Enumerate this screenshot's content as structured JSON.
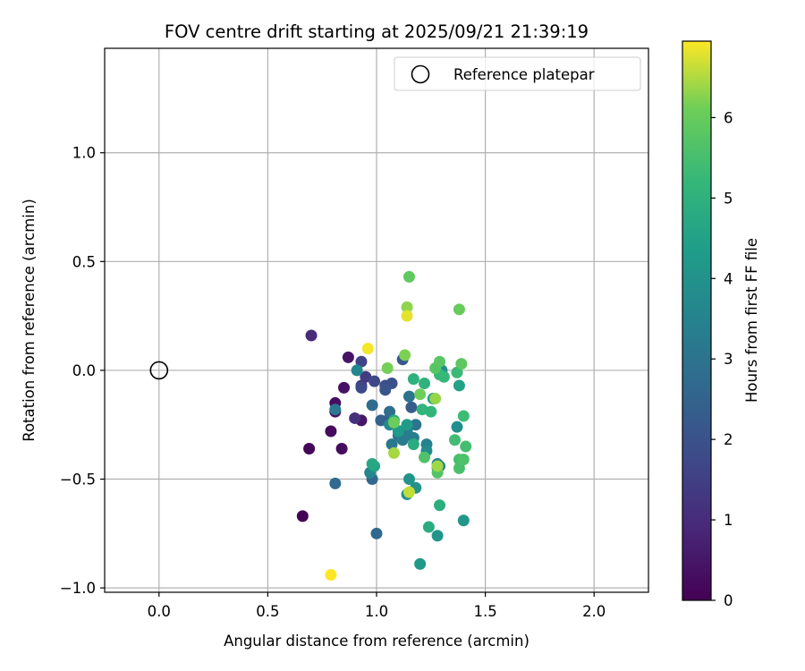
{
  "chart_data": {
    "type": "scatter",
    "title": "FOV centre drift starting at 2025/09/21 21:39:19",
    "xlabel": "Angular distance from reference (arcmin)",
    "ylabel": "Rotation from reference (arcmin)",
    "xlim": [
      -0.25,
      2.25
    ],
    "ylim": [
      -1.02,
      1.48
    ],
    "xticks": [
      0.0,
      0.5,
      1.0,
      1.5,
      2.0
    ],
    "xtick_labels": [
      "0.0",
      "0.5",
      "1.0",
      "1.5",
      "2.0"
    ],
    "yticks": [
      -1.0,
      -0.5,
      0.0,
      0.5,
      1.0
    ],
    "ytick_labels": [
      "−1.0",
      "−0.5",
      "0.0",
      "0.5",
      "1.0"
    ],
    "grid": true,
    "legend": {
      "position": "top-right",
      "label": "Reference platepar"
    },
    "reference_point": {
      "x": 0.0,
      "y": 0.0
    },
    "colorbar": {
      "label": "Hours from first FF file",
      "colormap": "viridis",
      "range": [
        0,
        6.95
      ],
      "ticks": [
        0,
        1,
        2,
        3,
        4,
        5,
        6
      ],
      "tick_labels": [
        "0",
        "1",
        "2",
        "3",
        "4",
        "5",
        "6"
      ]
    },
    "points": [
      {
        "x": 0.66,
        "y": -0.67,
        "t": 0.0
      },
      {
        "x": 0.69,
        "y": -0.36,
        "t": 0.1
      },
      {
        "x": 0.79,
        "y": -0.28,
        "t": 0.2
      },
      {
        "x": 0.84,
        "y": -0.36,
        "t": 0.25
      },
      {
        "x": 0.81,
        "y": -0.15,
        "t": 0.3
      },
      {
        "x": 0.81,
        "y": -0.19,
        "t": 0.35
      },
      {
        "x": 0.85,
        "y": -0.08,
        "t": 0.4
      },
      {
        "x": 0.87,
        "y": 0.06,
        "t": 0.45
      },
      {
        "x": 0.93,
        "y": -0.23,
        "t": 0.5
      },
      {
        "x": 0.7,
        "y": 0.16,
        "t": 1.0
      },
      {
        "x": 0.9,
        "y": -0.22,
        "t": 1.1
      },
      {
        "x": 0.93,
        "y": -0.07,
        "t": 1.3
      },
      {
        "x": 0.95,
        "y": -0.03,
        "t": 1.4
      },
      {
        "x": 0.93,
        "y": 0.04,
        "t": 1.6
      },
      {
        "x": 0.99,
        "y": -0.05,
        "t": 1.7
      },
      {
        "x": 0.93,
        "y": -0.08,
        "t": 1.8
      },
      {
        "x": 1.04,
        "y": -0.07,
        "t": 1.9
      },
      {
        "x": 1.07,
        "y": -0.06,
        "t": 2.0
      },
      {
        "x": 1.04,
        "y": -0.09,
        "t": 2.1
      },
      {
        "x": 1.12,
        "y": 0.05,
        "t": 2.2
      },
      {
        "x": 1.16,
        "y": -0.17,
        "t": 2.3
      },
      {
        "x": 1.06,
        "y": -0.22,
        "t": 2.4
      },
      {
        "x": 1.02,
        "y": -0.23,
        "t": 2.5
      },
      {
        "x": 0.98,
        "y": -0.5,
        "t": 2.6
      },
      {
        "x": 1.0,
        "y": -0.75,
        "t": 2.7
      },
      {
        "x": 0.81,
        "y": -0.52,
        "t": 2.75
      },
      {
        "x": 0.98,
        "y": -0.16,
        "t": 2.8
      },
      {
        "x": 1.06,
        "y": -0.19,
        "t": 2.85
      },
      {
        "x": 1.11,
        "y": -0.28,
        "t": 2.9
      },
      {
        "x": 1.15,
        "y": -0.12,
        "t": 3.0
      },
      {
        "x": 1.18,
        "y": -0.25,
        "t": 3.05
      },
      {
        "x": 1.1,
        "y": -0.3,
        "t": 3.1
      },
      {
        "x": 1.07,
        "y": -0.34,
        "t": 3.15
      },
      {
        "x": 0.81,
        "y": -0.18,
        "t": 3.2
      },
      {
        "x": 1.12,
        "y": -0.32,
        "t": 3.25
      },
      {
        "x": 1.14,
        "y": -0.28,
        "t": 3.3
      },
      {
        "x": 1.17,
        "y": -0.31,
        "t": 3.35
      },
      {
        "x": 1.23,
        "y": -0.34,
        "t": 3.4
      },
      {
        "x": 1.28,
        "y": -0.43,
        "t": 3.45
      },
      {
        "x": 1.29,
        "y": -0.44,
        "t": 3.5
      },
      {
        "x": 0.91,
        "y": 0.0,
        "t": 3.6
      },
      {
        "x": 0.97,
        "y": -0.47,
        "t": 3.65
      },
      {
        "x": 1.06,
        "y": -0.25,
        "t": 3.7
      },
      {
        "x": 1.23,
        "y": -0.37,
        "t": 3.75
      },
      {
        "x": 1.28,
        "y": -0.45,
        "t": 3.8
      },
      {
        "x": 1.3,
        "y": 0.0,
        "t": 3.85
      },
      {
        "x": 1.37,
        "y": -0.26,
        "t": 3.9
      },
      {
        "x": 1.14,
        "y": -0.57,
        "t": 3.95
      },
      {
        "x": 1.18,
        "y": -0.54,
        "t": 4.0
      },
      {
        "x": 1.15,
        "y": -0.5,
        "t": 4.05
      },
      {
        "x": 1.28,
        "y": -0.76,
        "t": 4.1
      },
      {
        "x": 1.4,
        "y": -0.69,
        "t": 4.15
      },
      {
        "x": 1.2,
        "y": -0.89,
        "t": 4.2
      },
      {
        "x": 1.1,
        "y": -0.28,
        "t": 4.25
      },
      {
        "x": 1.14,
        "y": -0.25,
        "t": 4.3
      },
      {
        "x": 1.26,
        "y": -0.13,
        "t": 4.4
      },
      {
        "x": 1.38,
        "y": -0.07,
        "t": 4.5
      },
      {
        "x": 0.99,
        "y": -0.44,
        "t": 4.6
      },
      {
        "x": 0.98,
        "y": -0.43,
        "t": 4.7
      },
      {
        "x": 1.08,
        "y": -0.23,
        "t": 4.75
      },
      {
        "x": 1.17,
        "y": -0.34,
        "t": 4.8
      },
      {
        "x": 1.24,
        "y": -0.72,
        "t": 4.85
      },
      {
        "x": 1.29,
        "y": -0.62,
        "t": 4.9
      },
      {
        "x": 1.17,
        "y": -0.04,
        "t": 5.0
      },
      {
        "x": 1.22,
        "y": -0.06,
        "t": 5.05
      },
      {
        "x": 1.21,
        "y": -0.18,
        "t": 5.1
      },
      {
        "x": 1.25,
        "y": -0.19,
        "t": 5.15
      },
      {
        "x": 1.29,
        "y": -0.02,
        "t": 5.2
      },
      {
        "x": 1.31,
        "y": -0.03,
        "t": 5.25
      },
      {
        "x": 1.37,
        "y": -0.01,
        "t": 5.3
      },
      {
        "x": 1.4,
        "y": -0.21,
        "t": 5.35
      },
      {
        "x": 1.36,
        "y": -0.32,
        "t": 5.4
      },
      {
        "x": 1.41,
        "y": -0.35,
        "t": 5.45
      },
      {
        "x": 1.38,
        "y": -0.41,
        "t": 5.5
      },
      {
        "x": 1.38,
        "y": -0.45,
        "t": 5.55
      },
      {
        "x": 1.4,
        "y": -0.41,
        "t": 5.6
      },
      {
        "x": 1.22,
        "y": -0.4,
        "t": 5.65
      },
      {
        "x": 1.28,
        "y": -0.47,
        "t": 5.7
      },
      {
        "x": 1.27,
        "y": 0.01,
        "t": 5.75
      },
      {
        "x": 1.29,
        "y": 0.04,
        "t": 5.8
      },
      {
        "x": 1.39,
        "y": 0.03,
        "t": 5.85
      },
      {
        "x": 1.15,
        "y": 0.43,
        "t": 5.9
      },
      {
        "x": 1.38,
        "y": 0.28,
        "t": 6.0
      },
      {
        "x": 1.08,
        "y": -0.24,
        "t": 6.05
      },
      {
        "x": 1.2,
        "y": -0.11,
        "t": 6.1
      },
      {
        "x": 1.05,
        "y": 0.01,
        "t": 6.15
      },
      {
        "x": 1.13,
        "y": 0.07,
        "t": 6.2
      },
      {
        "x": 1.14,
        "y": 0.29,
        "t": 6.3
      },
      {
        "x": 1.27,
        "y": -0.13,
        "t": 6.35
      },
      {
        "x": 1.28,
        "y": -0.44,
        "t": 6.4
      },
      {
        "x": 1.08,
        "y": -0.38,
        "t": 6.45
      },
      {
        "x": 1.15,
        "y": -0.56,
        "t": 6.6
      },
      {
        "x": 1.14,
        "y": 0.25,
        "t": 6.8
      },
      {
        "x": 0.96,
        "y": 0.1,
        "t": 6.9
      },
      {
        "x": 0.79,
        "y": -0.94,
        "t": 6.95
      }
    ]
  }
}
